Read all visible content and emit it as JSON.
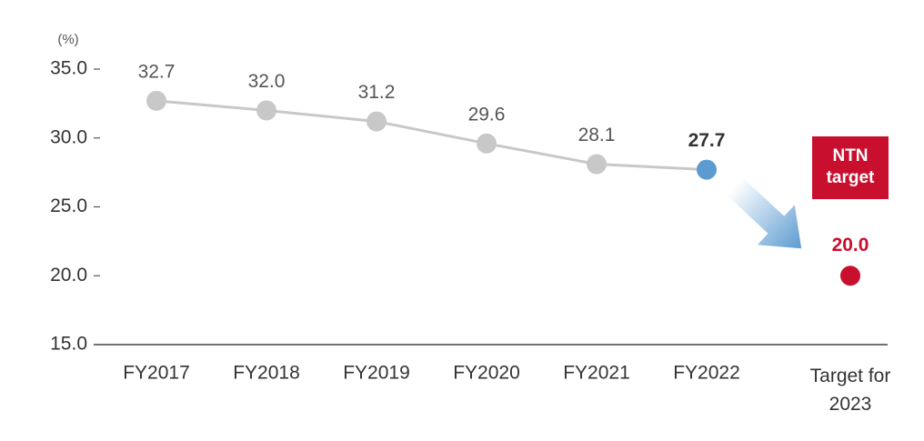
{
  "chart_data": {
    "type": "line",
    "unit_label": "(%)",
    "categories": [
      "FY2017",
      "FY2018",
      "FY2019",
      "FY2020",
      "FY2021",
      "FY2022",
      "Target for 2023"
    ],
    "values": [
      32.7,
      32.0,
      31.2,
      29.6,
      28.1,
      27.7,
      null
    ],
    "value_labels": [
      "32.7",
      "32.0",
      "31.2",
      "29.6",
      "28.1",
      "27.7",
      null
    ],
    "color": "#c8c8c8",
    "latest_color": "#5b9bd1",
    "target": {
      "label": "NTN target",
      "value": 20.0,
      "value_label": "20.0",
      "color": "#c8102e"
    },
    "ylim": [
      15,
      35
    ],
    "yticks": [
      {
        "value": 15,
        "label": "15.0"
      },
      {
        "value": 20,
        "label": "20.0"
      },
      {
        "value": 25,
        "label": "25.0"
      },
      {
        "value": 30,
        "label": "30.0"
      },
      {
        "value": 35,
        "label": "35.0"
      }
    ]
  }
}
